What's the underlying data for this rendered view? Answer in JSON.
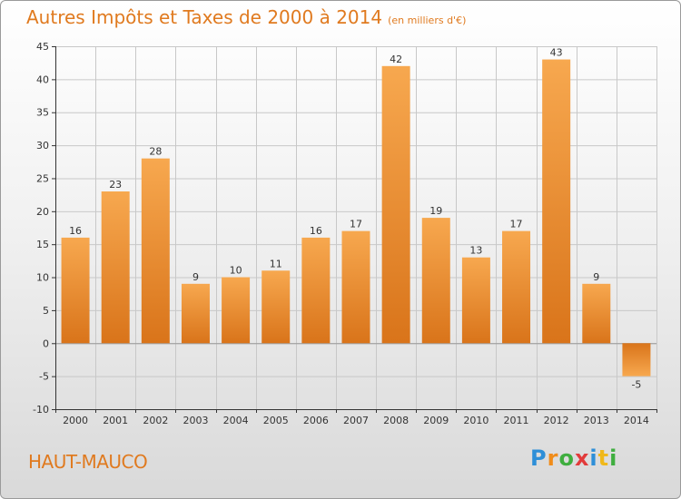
{
  "title": "Autres Impôts et Taxes de 2000 à 2014",
  "unit_note": "(en milliers d'€)",
  "commune": "HAUT-MAUCO",
  "logo": {
    "letters": [
      "P",
      "r",
      "o",
      "x",
      "i",
      "t",
      "i"
    ],
    "colors": [
      "#2e8fd8",
      "#f08c1a",
      "#3fae3f",
      "#e23b3b",
      "#2e8fd8",
      "#f0b81a",
      "#3fae3f"
    ]
  },
  "colors": {
    "bar_light": "#f7a84f",
    "bar_dark": "#d9741a",
    "axis": "#333333",
    "grid": "#c8c8c8",
    "title": "#e07a1f"
  },
  "chart_data": {
    "type": "bar",
    "title": "Autres Impôts et Taxes de 2000 à 2014",
    "xlabel": "",
    "ylabel": "",
    "categories": [
      "2000",
      "2001",
      "2002",
      "2003",
      "2004",
      "2005",
      "2006",
      "2007",
      "2008",
      "2009",
      "2010",
      "2011",
      "2012",
      "2013",
      "2014"
    ],
    "values": [
      16,
      23,
      28,
      9,
      10,
      11,
      16,
      17,
      42,
      19,
      13,
      17,
      43,
      9,
      -5
    ],
    "data_labels": [
      "16",
      "23",
      "28",
      "9",
      "10",
      "11",
      "16",
      "17",
      "42",
      "19",
      "13",
      "17",
      "43",
      "9",
      "-5"
    ],
    "ylim": [
      -10,
      45
    ],
    "yticks": [
      -10,
      -5,
      0,
      5,
      10,
      15,
      20,
      25,
      30,
      35,
      40,
      45
    ],
    "grid": true
  }
}
